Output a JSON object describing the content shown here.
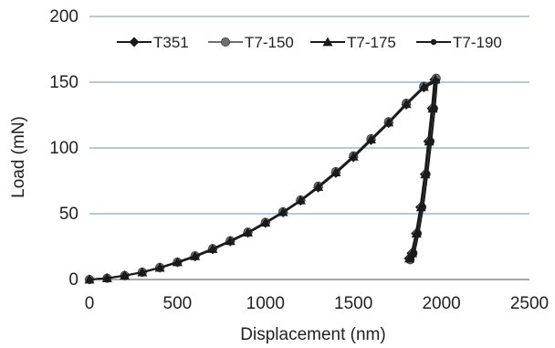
{
  "chart_data": {
    "type": "line",
    "title": "",
    "xlabel": "Displacement (nm)",
    "ylabel": "Load (mN)",
    "xlim": [
      0,
      2500
    ],
    "ylim": [
      0,
      200
    ],
    "xticks": [
      "0",
      "500",
      "1000",
      "1500",
      "2000",
      "2500"
    ],
    "yticks": [
      "0",
      "50",
      "100",
      "150",
      "200"
    ],
    "grid": "horizontal",
    "legend_position": "top",
    "series": [
      {
        "name": "T351",
        "marker": "diamond",
        "color": "#1a1a1a",
        "loading": [
          [
            0,
            0
          ],
          [
            100,
            1
          ],
          [
            200,
            3
          ],
          [
            300,
            5.5
          ],
          [
            400,
            9
          ],
          [
            500,
            13
          ],
          [
            600,
            17.5
          ],
          [
            700,
            23
          ],
          [
            800,
            29
          ],
          [
            900,
            35.5
          ],
          [
            1000,
            43
          ],
          [
            1100,
            51
          ],
          [
            1200,
            60
          ],
          [
            1300,
            70
          ],
          [
            1400,
            81
          ],
          [
            1500,
            93
          ],
          [
            1600,
            106
          ],
          [
            1700,
            119
          ],
          [
            1800,
            133
          ],
          [
            1900,
            146
          ],
          [
            1960,
            152
          ]
        ],
        "unloading": [
          [
            1960,
            152
          ],
          [
            1945,
            130
          ],
          [
            1925,
            105
          ],
          [
            1905,
            80
          ],
          [
            1880,
            55
          ],
          [
            1855,
            35
          ],
          [
            1830,
            20
          ],
          [
            1815,
            16
          ]
        ]
      },
      {
        "name": "T7-150",
        "marker": "circle",
        "color": "#6e6e6e",
        "loading": [
          [
            0,
            0
          ],
          [
            100,
            1
          ],
          [
            200,
            3
          ],
          [
            300,
            5.6
          ],
          [
            400,
            9.2
          ],
          [
            500,
            13.3
          ],
          [
            600,
            18
          ],
          [
            700,
            23.5
          ],
          [
            800,
            29.5
          ],
          [
            900,
            36
          ],
          [
            1000,
            43.5
          ],
          [
            1100,
            51.5
          ],
          [
            1200,
            60.5
          ],
          [
            1300,
            71
          ],
          [
            1400,
            82
          ],
          [
            1500,
            94
          ],
          [
            1600,
            107
          ],
          [
            1700,
            120
          ],
          [
            1800,
            134
          ],
          [
            1900,
            147
          ],
          [
            1970,
            153
          ]
        ],
        "unloading": [
          [
            1970,
            153
          ],
          [
            1955,
            130
          ],
          [
            1935,
            105
          ],
          [
            1912,
            80
          ],
          [
            1888,
            55
          ],
          [
            1862,
            35
          ],
          [
            1838,
            20
          ],
          [
            1822,
            15
          ]
        ]
      },
      {
        "name": "T7-175",
        "marker": "triangle",
        "color": "#1a1a1a",
        "loading": [
          [
            0,
            0
          ],
          [
            100,
            1
          ],
          [
            200,
            3
          ],
          [
            300,
            5.5
          ],
          [
            400,
            9
          ],
          [
            500,
            13.2
          ],
          [
            600,
            17.8
          ],
          [
            700,
            23.3
          ],
          [
            800,
            29.3
          ],
          [
            900,
            35.8
          ],
          [
            1000,
            43.3
          ],
          [
            1100,
            51.3
          ],
          [
            1200,
            60.3
          ],
          [
            1300,
            70.5
          ],
          [
            1400,
            81.5
          ],
          [
            1500,
            93.5
          ],
          [
            1600,
            106.5
          ],
          [
            1700,
            119.5
          ],
          [
            1800,
            133.5
          ],
          [
            1900,
            146.5
          ],
          [
            1965,
            152
          ]
        ],
        "unloading": [
          [
            1965,
            152
          ],
          [
            1950,
            130
          ],
          [
            1930,
            105
          ],
          [
            1908,
            80
          ],
          [
            1884,
            55
          ],
          [
            1858,
            35
          ],
          [
            1834,
            20
          ],
          [
            1818,
            16
          ]
        ]
      },
      {
        "name": "T7-190",
        "marker": "dot",
        "color": "#1a1a1a",
        "loading": [
          [
            0,
            0
          ],
          [
            100,
            1
          ],
          [
            200,
            2.9
          ],
          [
            300,
            5.4
          ],
          [
            400,
            8.8
          ],
          [
            500,
            12.8
          ],
          [
            600,
            17.3
          ],
          [
            700,
            22.8
          ],
          [
            800,
            28.8
          ],
          [
            900,
            35.3
          ],
          [
            1000,
            42.8
          ],
          [
            1100,
            50.8
          ],
          [
            1200,
            59.8
          ],
          [
            1300,
            69.8
          ],
          [
            1400,
            80.8
          ],
          [
            1500,
            92.8
          ],
          [
            1600,
            105.8
          ],
          [
            1700,
            118.8
          ],
          [
            1800,
            132.8
          ],
          [
            1900,
            145.8
          ],
          [
            1975,
            151
          ]
        ],
        "unloading": [
          [
            1975,
            151
          ],
          [
            1962,
            130
          ],
          [
            1942,
            105
          ],
          [
            1920,
            80
          ],
          [
            1896,
            55
          ],
          [
            1870,
            35
          ],
          [
            1846,
            20
          ],
          [
            1830,
            16
          ]
        ]
      }
    ]
  }
}
